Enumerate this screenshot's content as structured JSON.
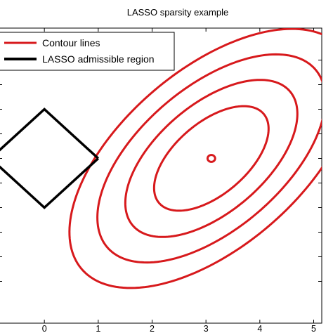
{
  "chart_data": {
    "type": "line",
    "title": "LASSO sparsity example",
    "xlabel": "",
    "ylabel": "",
    "xlim": [
      -0.85,
      5.15
    ],
    "ylim": [
      -3.35,
      2.65
    ],
    "x_ticks": [
      0,
      1,
      2,
      3,
      4,
      5
    ],
    "x_tick_labels": [
      "0",
      "1",
      "2",
      "3",
      "4",
      "5"
    ],
    "y_ticks": [
      -2.5,
      -2,
      -1.5,
      -1,
      -0.5,
      0,
      0.5,
      1,
      1.5,
      2
    ],
    "grid": false,
    "legend_position": "top-left",
    "legend": [
      {
        "label": "Contour lines",
        "color": "#d7191c"
      },
      {
        "label": "LASSO admissible region",
        "color": "#000000"
      }
    ],
    "contour_center": {
      "x": 3.1,
      "y": 0
    },
    "contour_tilt_degrees": 45,
    "contour_levels": [
      {
        "semi_major": 0.07,
        "semi_minor": 0.07
      },
      {
        "semi_major": 1.33,
        "semi_minor": 0.7
      },
      {
        "semi_major": 2.0,
        "semi_minor": 1.05
      },
      {
        "semi_major": 2.65,
        "semi_minor": 1.39
      },
      {
        "semi_major": 3.3,
        "semi_minor": 1.73
      }
    ],
    "series": [
      {
        "name": "LASSO admissible region",
        "color": "#000000",
        "x": [
          1,
          0,
          -1,
          0,
          1
        ],
        "y": [
          0,
          1,
          0,
          -1,
          0
        ]
      }
    ]
  }
}
